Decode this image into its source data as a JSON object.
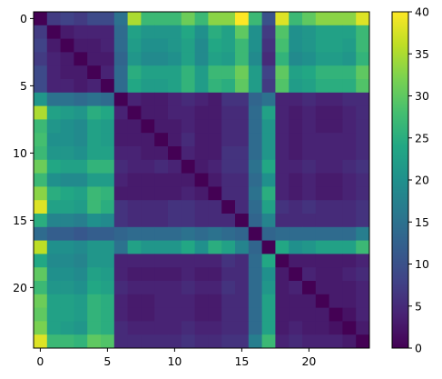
{
  "chart_data": {
    "type": "heatmap",
    "title": "",
    "xlabel": "",
    "ylabel": "",
    "colormap": "viridis",
    "n": 25,
    "xticks": [
      0,
      5,
      10,
      15,
      20
    ],
    "yticks": [
      0,
      5,
      10,
      15,
      20
    ],
    "colorbar": {
      "min": 0,
      "max": 40,
      "ticks": [
        0,
        5,
        10,
        15,
        20,
        25,
        30,
        35,
        40
      ]
    },
    "cluster_a": [
      0,
      1,
      2,
      3,
      4,
      5,
      16
    ],
    "cluster_b": [
      6,
      7,
      8,
      9,
      10,
      11,
      12,
      13,
      14,
      15,
      17,
      18,
      19,
      20,
      21,
      22,
      23,
      24
    ],
    "values": [
      [
        0,
        7,
        8,
        7,
        9,
        9,
        15,
        35,
        27,
        27,
        27,
        31,
        27,
        33,
        33,
        40,
        27,
        10,
        38,
        27,
        30,
        33,
        33,
        33,
        38
      ],
      [
        7,
        0,
        3,
        4,
        4,
        4,
        14,
        23,
        21,
        21,
        21,
        24,
        20,
        25,
        23,
        30,
        20,
        7,
        29,
        20,
        21,
        23,
        23,
        23,
        27
      ],
      [
        8,
        3,
        0,
        3,
        3,
        4,
        14,
        22,
        20,
        20,
        21,
        23,
        19,
        24,
        23,
        27,
        20,
        6,
        28,
        20,
        21,
        23,
        23,
        22,
        27
      ],
      [
        7,
        4,
        3,
        0,
        3,
        3,
        13,
        21,
        19,
        19,
        20,
        23,
        19,
        23,
        22,
        27,
        19,
        5,
        26,
        19,
        20,
        22,
        22,
        21,
        26
      ],
      [
        9,
        4,
        3,
        3,
        0,
        4,
        14,
        25,
        23,
        23,
        23,
        26,
        22,
        27,
        27,
        31,
        22,
        8,
        30,
        23,
        24,
        26,
        26,
        26,
        30
      ],
      [
        9,
        4,
        4,
        3,
        4,
        0,
        14,
        24,
        22,
        22,
        23,
        26,
        22,
        26,
        25,
        30,
        22,
        7,
        29,
        22,
        23,
        25,
        25,
        25,
        29
      ],
      [
        21,
        15,
        15,
        14,
        15,
        14,
        0,
        4,
        3,
        3,
        4,
        5,
        4,
        3,
        6,
        6,
        13,
        15,
        4,
        4,
        5,
        4,
        4,
        5,
        5
      ],
      [
        35,
        23,
        22,
        21,
        25,
        24,
        4,
        0,
        3,
        3,
        4,
        4,
        3,
        3,
        5,
        5,
        14,
        23,
        4,
        3,
        4,
        3,
        3,
        4,
        5
      ],
      [
        27,
        21,
        20,
        19,
        23,
        22,
        3,
        3,
        0,
        3,
        3,
        4,
        3,
        3,
        5,
        5,
        14,
        21,
        4,
        3,
        4,
        3,
        3,
        4,
        5
      ],
      [
        28,
        20,
        20,
        19,
        23,
        22,
        3,
        3,
        3,
        0,
        3,
        5,
        3,
        3,
        5,
        5,
        14,
        21,
        4,
        3,
        4,
        4,
        4,
        4,
        5
      ],
      [
        27,
        21,
        21,
        20,
        23,
        23,
        4,
        4,
        3,
        3,
        0,
        4,
        3,
        3,
        6,
        6,
        14,
        21,
        4,
        3,
        4,
        4,
        4,
        4,
        5
      ],
      [
        31,
        24,
        23,
        23,
        26,
        26,
        5,
        4,
        4,
        5,
        4,
        0,
        3,
        4,
        6,
        6,
        15,
        24,
        4,
        4,
        5,
        4,
        4,
        5,
        6
      ],
      [
        27,
        20,
        19,
        19,
        22,
        22,
        4,
        3,
        3,
        3,
        3,
        3,
        0,
        3,
        5,
        5,
        14,
        20,
        4,
        3,
        4,
        3,
        3,
        4,
        5
      ],
      [
        33,
        25,
        24,
        23,
        27,
        26,
        3,
        3,
        3,
        3,
        3,
        4,
        3,
        0,
        5,
        5,
        15,
        25,
        4,
        3,
        4,
        3,
        3,
        4,
        5
      ],
      [
        38,
        23,
        23,
        22,
        27,
        25,
        6,
        5,
        5,
        5,
        6,
        6,
        5,
        5,
        0,
        5,
        14,
        23,
        6,
        5,
        6,
        5,
        5,
        5,
        6
      ],
      [
        25,
        18,
        18,
        17,
        20,
        19,
        6,
        5,
        5,
        5,
        6,
        6,
        5,
        5,
        5,
        0,
        13,
        18,
        5,
        5,
        5,
        5,
        5,
        5,
        6
      ],
      [
        14,
        12,
        12,
        11,
        12,
        12,
        13,
        14,
        14,
        14,
        14,
        15,
        14,
        15,
        14,
        13,
        0,
        13,
        14,
        14,
        14,
        14,
        14,
        14,
        17
      ],
      [
        36,
        20,
        20,
        19,
        21,
        21,
        15,
        23,
        21,
        21,
        21,
        24,
        20,
        25,
        23,
        18,
        13,
        0,
        24,
        20,
        21,
        23,
        23,
        23,
        27
      ],
      [
        24,
        19,
        19,
        18,
        21,
        21,
        4,
        4,
        4,
        4,
        4,
        4,
        4,
        4,
        6,
        5,
        14,
        24,
        0,
        3,
        3,
        3,
        3,
        3,
        4
      ],
      [
        30,
        20,
        20,
        19,
        23,
        22,
        4,
        3,
        3,
        3,
        3,
        4,
        3,
        3,
        5,
        5,
        14,
        20,
        3,
        0,
        4,
        3,
        3,
        4,
        5
      ],
      [
        27,
        21,
        21,
        20,
        24,
        23,
        5,
        4,
        4,
        4,
        4,
        5,
        4,
        4,
        6,
        5,
        14,
        21,
        3,
        4,
        0,
        3,
        3,
        3,
        4
      ],
      [
        31,
        23,
        23,
        22,
        26,
        25,
        4,
        3,
        3,
        4,
        4,
        4,
        3,
        3,
        5,
        5,
        14,
        23,
        3,
        3,
        3,
        0,
        3,
        3,
        4
      ],
      [
        30,
        23,
        23,
        22,
        26,
        25,
        4,
        3,
        3,
        4,
        4,
        4,
        3,
        3,
        5,
        5,
        14,
        23,
        3,
        3,
        3,
        3,
        0,
        2,
        4
      ],
      [
        32,
        23,
        22,
        21,
        26,
        25,
        5,
        4,
        4,
        4,
        4,
        5,
        4,
        4,
        5,
        5,
        14,
        23,
        3,
        4,
        3,
        3,
        2,
        0,
        3
      ],
      [
        38,
        27,
        27,
        26,
        30,
        29,
        5,
        5,
        5,
        5,
        5,
        6,
        5,
        5,
        6,
        6,
        17,
        27,
        4,
        5,
        4,
        4,
        4,
        3,
        0
      ]
    ]
  }
}
